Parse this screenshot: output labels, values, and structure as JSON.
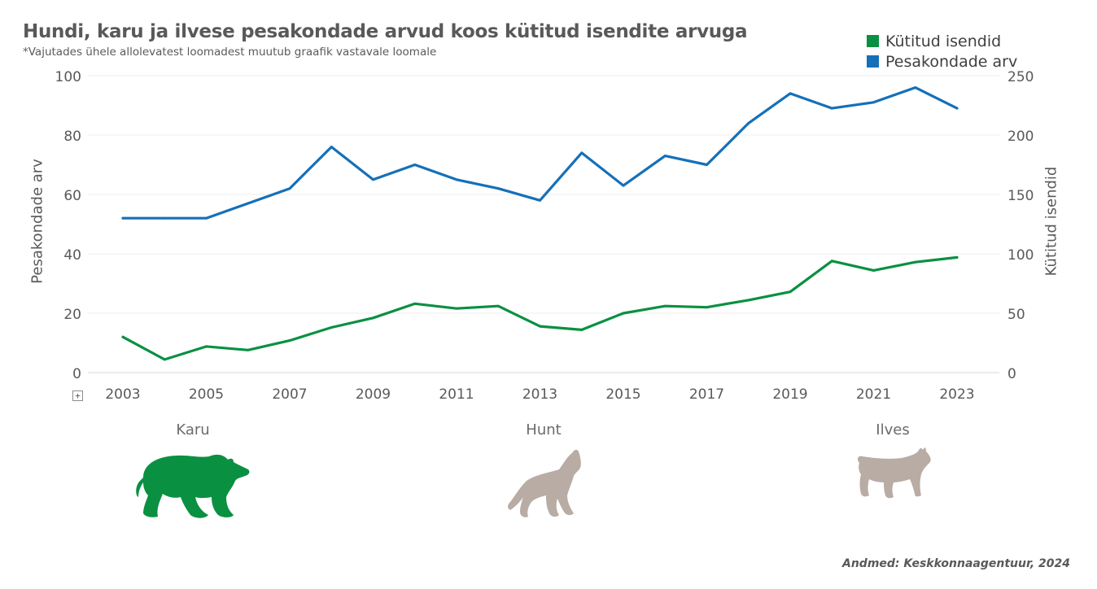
{
  "title": "Hundi, karu ja ilvese pesakondade arvud koos kütitud isendite arvuga",
  "subtitle": "*Vajutades ühele allolevatest loomadest muutub graafik vastavale loomale",
  "legend": {
    "hunted": "Kütitud isendid",
    "litters": "Pesakondade arv"
  },
  "colors": {
    "hunted": "#0a9041",
    "litters": "#1570b8",
    "animal_active": "#0a9041",
    "animal_inactive": "#b8aca5"
  },
  "ylabel_left": "Pesakondade arv",
  "ylabel_right": "Kütitud isendid",
  "expand_icon_glyph": "+",
  "animals": {
    "bear": {
      "label": "Karu",
      "icon": "bear-icon",
      "active": true
    },
    "wolf": {
      "label": "Hunt",
      "icon": "wolf-icon",
      "active": false
    },
    "lynx": {
      "label": "Ilves",
      "icon": "lynx-icon",
      "active": false
    }
  },
  "source": "Andmed: Keskkonnaagentuur, 2024",
  "chart_data": {
    "type": "line",
    "x": [
      2003,
      2004,
      2005,
      2006,
      2007,
      2008,
      2009,
      2010,
      2011,
      2012,
      2013,
      2014,
      2015,
      2016,
      2017,
      2018,
      2019,
      2020,
      2021,
      2022,
      2023
    ],
    "x_tick_labels": [
      "2003",
      "2005",
      "2007",
      "2009",
      "2011",
      "2013",
      "2015",
      "2017",
      "2019",
      "2021",
      "2023"
    ],
    "y_left_ticks": [
      "0",
      "20",
      "40",
      "60",
      "80",
      "100"
    ],
    "y_right_ticks": [
      "0",
      "50",
      "100",
      "150",
      "200",
      "250"
    ],
    "ylim_left": [
      0,
      100
    ],
    "ylim_right": [
      0,
      250
    ],
    "grid": true,
    "legend_position": "top-right",
    "series": [
      {
        "name": "Pesakondade arv",
        "axis": "left",
        "values": [
          52,
          52,
          52,
          57,
          62,
          76,
          65,
          70,
          65,
          62,
          58,
          74,
          63,
          73,
          70,
          84,
          94,
          89,
          91,
          96,
          89
        ]
      },
      {
        "name": "Kütitud isendid",
        "axis": "right",
        "values": [
          30,
          11,
          22,
          19,
          27,
          38,
          46,
          58,
          54,
          56,
          39,
          36,
          50,
          56,
          55,
          61,
          68,
          94,
          86,
          93,
          97
        ]
      }
    ]
  }
}
